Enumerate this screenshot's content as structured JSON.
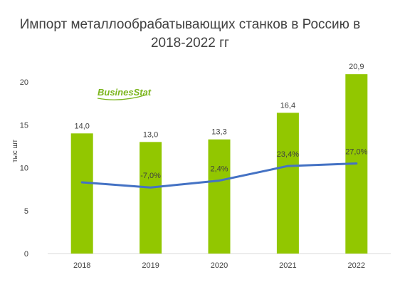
{
  "chart_data": {
    "type": "bar",
    "title_line1": "Импорт металлообрабатывающих станков в Россию в",
    "title_line2": "2018-2022 гг",
    "ylabel": "тыс шт",
    "ylim": [
      0,
      20
    ],
    "y_ticks": [
      "0",
      "5",
      "10",
      "15",
      "20"
    ],
    "categories": [
      "2018",
      "2019",
      "2020",
      "2021",
      "2022"
    ],
    "series": [
      {
        "type": "bar",
        "values": [
          14.0,
          13.0,
          13.3,
          16.4,
          20.9
        ],
        "labels": [
          "14,0",
          "13,0",
          "13,3",
          "16,4",
          "20,9"
        ],
        "color": "#92c700"
      },
      {
        "type": "line",
        "values": [
          8.3,
          7.7,
          8.5,
          10.2,
          10.5
        ],
        "labels": [
          "",
          "-7,0%",
          "2,4%",
          "23,4%",
          "27,0%"
        ],
        "color": "#4472c4"
      }
    ],
    "grid": false,
    "legend": "none"
  },
  "logo": {
    "text": "BusinesStat",
    "color": "#7bb51c"
  }
}
